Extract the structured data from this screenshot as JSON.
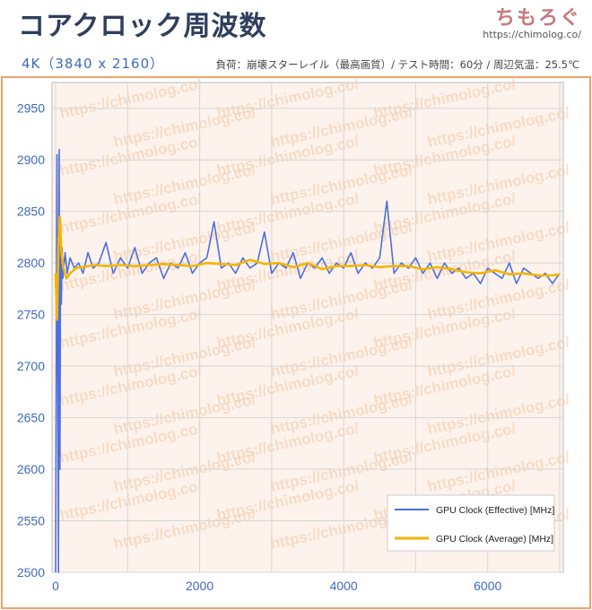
{
  "header": {
    "title": "コアクロック周波数",
    "brand_name": "ちもろぐ",
    "brand_url": "https://chimolog.co/",
    "resolution": "4K（3840 x 2160）",
    "conditions": "負荷：崩壊スターレイル（最高画質）/ テスト時間：60分 / 周辺気温：25.5℃"
  },
  "watermark_text": "https://chimolog.co/",
  "colors": {
    "effective": "#4d6fe0",
    "average": "#f5b400",
    "grid": "#d6d6d6",
    "axis_label": "#3f69bf",
    "background_tint": "#fdf3ec"
  },
  "chart_data": {
    "type": "line",
    "xlim": [
      -50,
      7050
    ],
    "ylim": [
      2500,
      2975
    ],
    "x_ticks": [
      0,
      2000,
      4000,
      6000
    ],
    "x_tick_labels": [
      "0",
      "2000",
      "4000",
      "6000"
    ],
    "y_ticks": [
      2500,
      2550,
      2600,
      2650,
      2700,
      2750,
      2800,
      2850,
      2900,
      2950
    ],
    "y_tick_labels": [
      "2500",
      "2550",
      "2600",
      "2650",
      "2700",
      "2750",
      "2800",
      "2850",
      "2900",
      "2950"
    ],
    "grid": true,
    "legend_position": "bottom-right",
    "series": [
      {
        "name": "GPU Clock (Effective) [MHz]",
        "color": "#4d6fe0",
        "x": [
          0,
          20,
          40,
          50,
          60,
          70,
          80,
          90,
          100,
          130,
          160,
          200,
          260,
          320,
          380,
          450,
          520,
          600,
          700,
          800,
          900,
          1000,
          1100,
          1200,
          1300,
          1400,
          1500,
          1600,
          1700,
          1800,
          1900,
          2000,
          2100,
          2200,
          2300,
          2400,
          2500,
          2600,
          2700,
          2800,
          2900,
          3000,
          3100,
          3200,
          3300,
          3400,
          3500,
          3600,
          3700,
          3800,
          3900,
          4000,
          4100,
          4200,
          4300,
          4400,
          4500,
          4600,
          4700,
          4800,
          4900,
          5000,
          5100,
          5200,
          5300,
          5400,
          5500,
          5600,
          5700,
          5800,
          5900,
          6000,
          6100,
          6200,
          6300,
          6400,
          6500,
          6600,
          6700,
          6800,
          6900,
          7000
        ],
        "y": [
          2500,
          2905,
          2500,
          2910,
          2600,
          2830,
          2760,
          2815,
          2785,
          2810,
          2790,
          2805,
          2795,
          2800,
          2790,
          2810,
          2795,
          2800,
          2820,
          2790,
          2805,
          2795,
          2815,
          2790,
          2800,
          2805,
          2785,
          2800,
          2795,
          2810,
          2790,
          2800,
          2805,
          2840,
          2795,
          2800,
          2790,
          2805,
          2795,
          2800,
          2830,
          2790,
          2800,
          2795,
          2810,
          2785,
          2800,
          2795,
          2805,
          2790,
          2800,
          2795,
          2810,
          2790,
          2800,
          2795,
          2805,
          2860,
          2790,
          2800,
          2795,
          2805,
          2790,
          2800,
          2785,
          2800,
          2790,
          2795,
          2785,
          2790,
          2780,
          2795,
          2790,
          2785,
          2800,
          2780,
          2795,
          2790,
          2785,
          2790,
          2780,
          2790
        ]
      },
      {
        "name": "GPU Clock (Average) [MHz]",
        "color": "#f5b400",
        "x": [
          0,
          20,
          40,
          60,
          80,
          110,
          150,
          200,
          280,
          360,
          450,
          550,
          700,
          900,
          1100,
          1300,
          1500,
          1700,
          1900,
          2100,
          2300,
          2500,
          2700,
          2900,
          3100,
          3300,
          3500,
          3700,
          3900,
          4100,
          4300,
          4500,
          4700,
          4900,
          5100,
          5300,
          5500,
          5700,
          5900,
          6100,
          6300,
          6500,
          6700,
          6900,
          7000
        ],
        "y": [
          2790,
          2745,
          2820,
          2845,
          2810,
          2795,
          2785,
          2790,
          2795,
          2796,
          2797,
          2798,
          2797,
          2798,
          2797,
          2798,
          2799,
          2798,
          2797,
          2800,
          2799,
          2798,
          2803,
          2799,
          2800,
          2796,
          2800,
          2794,
          2797,
          2797,
          2798,
          2796,
          2797,
          2797,
          2794,
          2796,
          2794,
          2791,
          2790,
          2793,
          2789,
          2790,
          2788,
          2788,
          2789
        ]
      }
    ]
  }
}
